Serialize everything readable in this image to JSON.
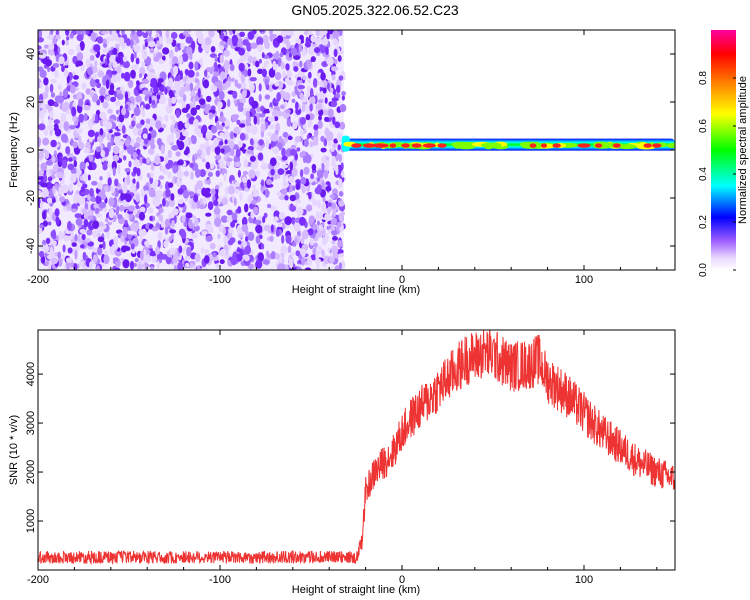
{
  "title": "GN05.2025.322.06.52.C23",
  "chart_data": [
    {
      "type": "heatmap",
      "xlabel": "Height of straight line (km)",
      "ylabel": "Frequency (Hz)",
      "xlim": [
        -200,
        150
      ],
      "ylim": [
        -50,
        50
      ],
      "xticks": [
        -200,
        -100,
        0,
        100
      ],
      "yticks": [
        -40,
        -20,
        0,
        20,
        40
      ],
      "colorbar": {
        "label": "Normalized spectral amplitude",
        "range": [
          0,
          1
        ],
        "ticks": [
          0.0,
          0.2,
          0.4,
          0.6,
          0.8
        ],
        "colors": [
          "#ffffff",
          "#e9d8ff",
          "#a060ff",
          "#0000ff",
          "#00ffff",
          "#00ff00",
          "#ffff00",
          "#ff8000",
          "#ff0000",
          "#ff00a0"
        ]
      },
      "noise_region_x": [
        -200,
        -32
      ],
      "signal_start_x": -32,
      "signal_freq_hz": 1,
      "grid": false
    },
    {
      "type": "line",
      "xlabel": "Height of straight line (km)",
      "ylabel": "SNR (10 * v/v)",
      "xlim": [
        -200,
        150
      ],
      "ylim": [
        0,
        4900
      ],
      "xticks": [
        -200,
        -100,
        0,
        100
      ],
      "yticks": [
        1000,
        2000,
        3000,
        4000
      ],
      "color": "#ee3333",
      "grid": false,
      "x": [
        -200,
        -150,
        -100,
        -50,
        -25,
        -22,
        -20,
        -15,
        -10,
        -5,
        0,
        5,
        10,
        20,
        30,
        35,
        40,
        45,
        50,
        60,
        70,
        75,
        80,
        90,
        100,
        110,
        120,
        130,
        140,
        150
      ],
      "y": [
        250,
        250,
        250,
        250,
        250,
        600,
        1600,
        2000,
        2200,
        2400,
        2800,
        3100,
        3300,
        3700,
        4100,
        4300,
        4350,
        4450,
        4400,
        4150,
        4200,
        4300,
        3900,
        3600,
        3200,
        2800,
        2500,
        2200,
        2000,
        1850
      ]
    }
  ]
}
